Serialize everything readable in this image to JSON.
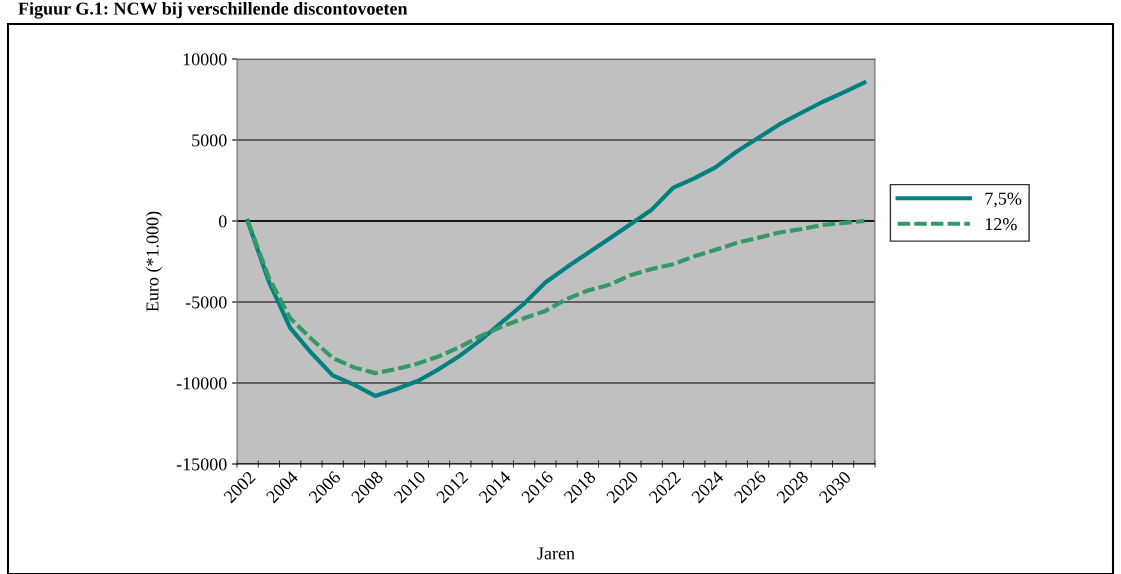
{
  "chart_data": {
    "type": "line",
    "title": "Figuur G.1: NCW bij verschillende discontovoeten",
    "xlabel": "Jaren",
    "ylabel": "Euro (*1.000)",
    "categories": [
      "2002",
      null,
      "2004",
      null,
      "2006",
      null,
      "2008",
      null,
      "2010",
      null,
      "2012",
      null,
      "2014",
      null,
      "2016",
      null,
      "2018",
      null,
      "2020",
      null,
      "2022",
      null,
      "2024",
      null,
      "2026",
      null,
      "2028",
      null,
      "2030",
      null
    ],
    "series": [
      {
        "name": "7,5%",
        "color": "#008080",
        "line_style": "solid",
        "values": [
          0,
          -3750,
          -6600,
          -8150,
          -9530,
          -10100,
          -10800,
          -10370,
          -9880,
          -9140,
          -8300,
          -7310,
          -6200,
          -5100,
          -3800,
          -2860,
          -1980,
          -1100,
          -200,
          700,
          2040,
          2630,
          3310,
          4290,
          5120,
          5960,
          6650,
          7330,
          7920,
          8550
        ]
      },
      {
        "name": "12%",
        "color": "#339966",
        "line_style": "dashed",
        "values": [
          0,
          -3500,
          -6000,
          -7280,
          -8450,
          -9040,
          -9390,
          -9140,
          -8800,
          -8350,
          -7760,
          -7080,
          -6490,
          -6000,
          -5550,
          -4820,
          -4290,
          -3940,
          -3350,
          -2960,
          -2670,
          -2180,
          -1780,
          -1350,
          -1040,
          -710,
          -510,
          -250,
          -120,
          0
        ]
      }
    ],
    "ylim": [
      -15000,
      10000
    ],
    "yticks": [
      -15000,
      -10000,
      -5000,
      0,
      5000,
      10000
    ],
    "grid": "y",
    "legend": "right",
    "marker": "none"
  }
}
